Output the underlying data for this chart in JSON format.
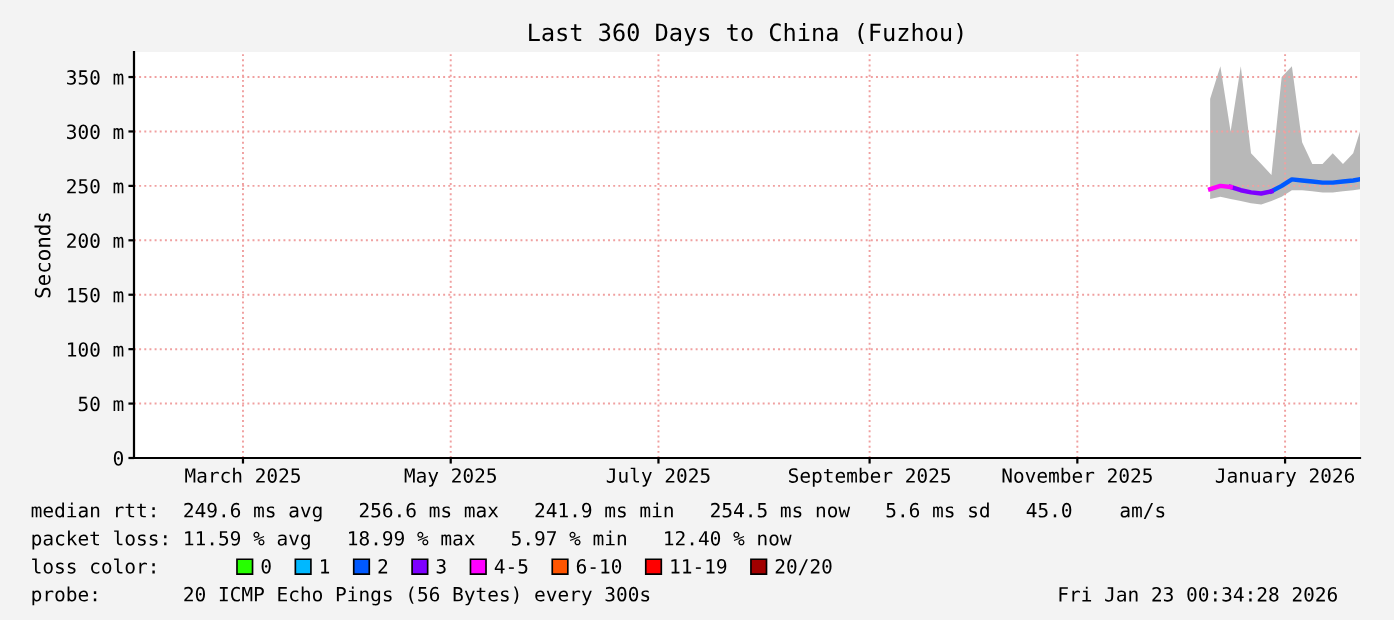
{
  "chart_data": {
    "type": "line",
    "title": "Last 360 Days to China (Fuzhou)",
    "ylabel": "Seconds",
    "x": [
      "2025-12-10",
      "2025-12-13",
      "2025-12-16",
      "2025-12-19",
      "2025-12-22",
      "2025-12-25",
      "2025-12-28",
      "2025-12-31",
      "2026-01-03",
      "2026-01-06",
      "2026-01-09",
      "2026-01-12",
      "2026-01-15",
      "2026-01-18",
      "2026-01-21",
      "2026-01-23"
    ],
    "series": [
      {
        "type": "area",
        "color": "#888888",
        "values": [
          null,
          null,
          null,
          null,
          null,
          null,
          null,
          null,
          null,
          null,
          null,
          null,
          null,
          null,
          null,
          null
        ],
        "lower": [
          238,
          240,
          238,
          236,
          234,
          233,
          236,
          240,
          246,
          246,
          245,
          244,
          244,
          245,
          246,
          247
        ],
        "upper": [
          330,
          360,
          300,
          360,
          280,
          270,
          260,
          350,
          360,
          290,
          270,
          270,
          280,
          270,
          280,
          300
        ]
      },
      {
        "name": "0",
        "color": "#26ff00",
        "values": [
          null,
          null,
          null,
          null,
          null,
          null,
          null,
          null,
          null,
          null,
          null,
          null,
          null,
          null,
          null,
          null
        ]
      },
      {
        "name": "1",
        "color": "#00b8ff",
        "values": [
          null,
          null,
          null,
          null,
          null,
          null,
          null,
          null,
          null,
          null,
          null,
          null,
          null,
          null,
          null,
          null
        ]
      },
      {
        "name": "2",
        "color": "#0059ff",
        "values": [
          null,
          null,
          null,
          null,
          null,
          null,
          245,
          250,
          256,
          255,
          254,
          253,
          253,
          254,
          255,
          256
        ]
      },
      {
        "name": "3",
        "color": "#7e00ff",
        "values": [
          null,
          null,
          249,
          246,
          244,
          243,
          245,
          null,
          null,
          null,
          null,
          null,
          null,
          null,
          null,
          null
        ]
      },
      {
        "name": "4-5",
        "color": "#ff00ff",
        "values": [
          247,
          250,
          249,
          null,
          null,
          null,
          null,
          null,
          null,
          null,
          null,
          null,
          null,
          null,
          null,
          null
        ]
      },
      {
        "name": "6-10",
        "color": "#ff5500",
        "values": [
          null,
          null,
          null,
          null,
          null,
          null,
          null,
          null,
          null,
          null,
          null,
          null,
          null,
          null,
          null,
          null
        ]
      },
      {
        "name": "11-19",
        "color": "#ff0000",
        "values": [
          null,
          null,
          null,
          null,
          null,
          null,
          null,
          null,
          null,
          null,
          null,
          null,
          null,
          null,
          null,
          null
        ]
      },
      {
        "name": "20/20",
        "color": "#a10000",
        "values": [
          null,
          null,
          null,
          null,
          null,
          null,
          null,
          null,
          null,
          null,
          null,
          null,
          null,
          null,
          null,
          null
        ]
      }
    ],
    "legend_title": "loss color:",
    "legend": "bottom",
    "ylim": [
      0,
      373
    ],
    "yticks": [
      0,
      {
        "value": 50,
        "label": "50 m"
      },
      {
        "value": 100,
        "label": "100 m"
      },
      {
        "value": 150,
        "label": "150 m"
      },
      {
        "value": 200,
        "label": "200 m"
      },
      {
        "value": 250,
        "label": "250 m"
      },
      {
        "value": 300,
        "label": "300 m"
      },
      {
        "value": 350,
        "label": "350 m"
      }
    ],
    "xlim": [
      "2025-01-28",
      "2026-01-23"
    ],
    "xticks": [
      {
        "value": "2025-03-01",
        "label": "March 2025"
      },
      {
        "value": "2025-05-01",
        "label": "May 2025"
      },
      {
        "value": "2025-07-01",
        "label": "July 2025"
      },
      {
        "value": "2025-09-01",
        "label": "September 2025"
      },
      {
        "value": "2025-11-01",
        "label": "November 2025"
      },
      {
        "value": "2026-01-01",
        "label": "January 2026"
      }
    ],
    "grid": true,
    "line_style": "solid",
    "marker": "none",
    "annotations": [
      "median rtt:  249.6 ms avg   256.6 ms max   241.9 ms min   254.5 ms now   5.6 ms sd   45.0    am/s",
      "packet loss: 11.59 % avg   18.99 % max   5.97 % min   12.40 % now",
      "probe:       20 ICMP Echo Pings (56 Bytes) every 300s",
      "Fri Jan 23 00:34:28 2026"
    ]
  }
}
